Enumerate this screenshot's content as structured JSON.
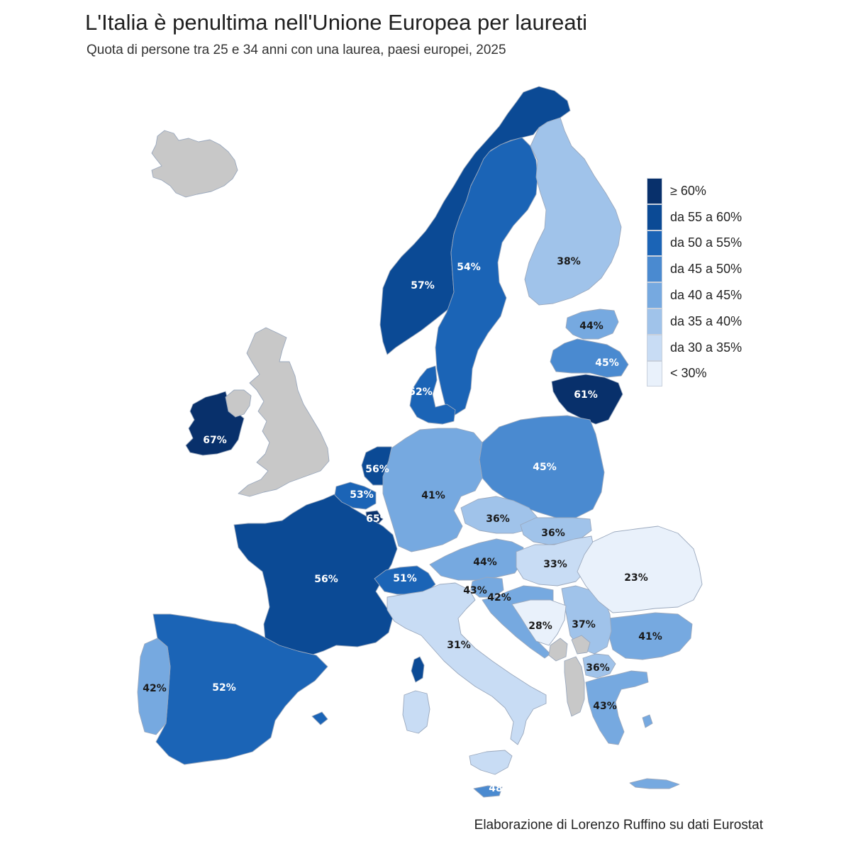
{
  "title": "L'Italia è penultima nell'Unione Europea per laureati",
  "subtitle": "Quota di persone tra 25 e 34 anni con una laurea, paesi europei, 2025",
  "caption": "Elaborazione di Lorenzo Ruffino su dati Eurostat",
  "colors": {
    "no_data": "#c8c8c8",
    "border": "#9aa8bd",
    "label_dark": "#1a1a1a",
    "label_light": "#ffffff"
  },
  "legend": [
    {
      "label": "≥ 60%",
      "color": "#08306b"
    },
    {
      "label": "da 55 a 60%",
      "color": "#0b4a95"
    },
    {
      "label": "da 50 a 55%",
      "color": "#1b64b6"
    },
    {
      "label": "da 45 a 50%",
      "color": "#4a8ad0"
    },
    {
      "label": "da 40 a 45%",
      "color": "#76a9e0"
    },
    {
      "label": "da 35 a 40%",
      "color": "#a0c3ea"
    },
    {
      "label": "da 30 a 35%",
      "color": "#c8dcf4"
    },
    {
      "label": "< 30%",
      "color": "#e9f1fb"
    }
  ],
  "countries": [
    {
      "name": "Ireland",
      "value": 67,
      "label": "67%"
    },
    {
      "name": "Lithuania",
      "value": 61,
      "label": "61%"
    },
    {
      "name": "Luxembourg",
      "value": 65,
      "label": "65%"
    },
    {
      "name": "Norway",
      "value": 57,
      "label": "57%"
    },
    {
      "name": "Netherlands",
      "value": 56,
      "label": "56%"
    },
    {
      "name": "France",
      "value": 56,
      "label": "56%"
    },
    {
      "name": "Sweden",
      "value": 54,
      "label": "54%"
    },
    {
      "name": "Belgium",
      "value": 53,
      "label": "53%"
    },
    {
      "name": "Denmark",
      "value": 52,
      "label": "52%"
    },
    {
      "name": "Spain",
      "value": 52,
      "label": "52%"
    },
    {
      "name": "Switzerland",
      "value": 51,
      "label": "51%"
    },
    {
      "name": "Cyprus",
      "value": 48,
      "label": "48%"
    },
    {
      "name": "Poland",
      "value": 45,
      "label": "45%"
    },
    {
      "name": "Latvia",
      "value": 45,
      "label": "45%"
    },
    {
      "name": "Estonia",
      "value": 44,
      "label": "44%"
    },
    {
      "name": "Austria",
      "value": 44,
      "label": "44%"
    },
    {
      "name": "Slovenia",
      "value": 43,
      "label": "43%"
    },
    {
      "name": "Greece",
      "value": 43,
      "label": "43%"
    },
    {
      "name": "Croatia",
      "value": 42,
      "label": "42%"
    },
    {
      "name": "Portugal",
      "value": 42,
      "label": "42%"
    },
    {
      "name": "Germany",
      "value": 41,
      "label": "41%"
    },
    {
      "name": "Bulgaria",
      "value": 41,
      "label": "41%"
    },
    {
      "name": "Finland",
      "value": 38,
      "label": "38%"
    },
    {
      "name": "Serbia",
      "value": 37,
      "label": "37%"
    },
    {
      "name": "Czechia",
      "value": 36,
      "label": "36%"
    },
    {
      "name": "Slovakia",
      "value": 36,
      "label": "36%"
    },
    {
      "name": "North Macedonia",
      "value": 36,
      "label": "36%"
    },
    {
      "name": "Hungary",
      "value": 33,
      "label": "33%"
    },
    {
      "name": "Italy",
      "value": 31,
      "label": "31%"
    },
    {
      "name": "Bosnia and Herzegovina",
      "value": 28,
      "label": "28%"
    },
    {
      "name": "Romania",
      "value": 23,
      "label": "23%"
    },
    {
      "name": "Iceland",
      "value": null,
      "label": ""
    },
    {
      "name": "United Kingdom",
      "value": null,
      "label": ""
    },
    {
      "name": "Northern Ireland",
      "value": null,
      "label": ""
    },
    {
      "name": "Montenegro",
      "value": null,
      "label": ""
    },
    {
      "name": "Kosovo",
      "value": null,
      "label": ""
    },
    {
      "name": "Albania",
      "value": null,
      "label": ""
    }
  ]
}
